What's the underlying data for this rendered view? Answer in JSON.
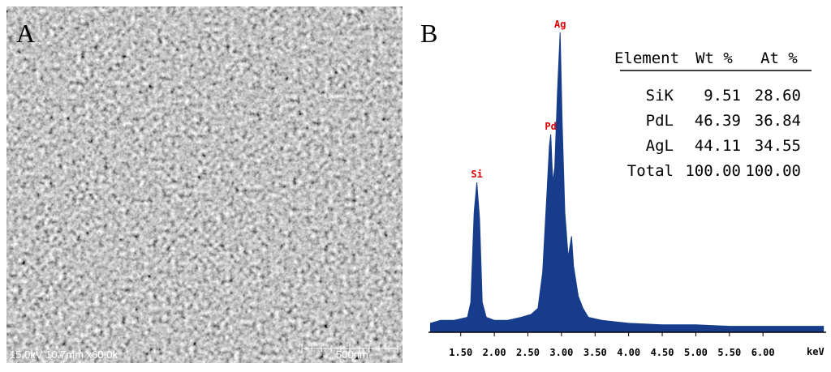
{
  "panel_a": {
    "label": "A",
    "info": "15.0kV 10.7mm x60.0k",
    "scale": "500nm"
  },
  "panel_b": {
    "label": "B",
    "x_unit": "keV",
    "xlim": [
      1.02,
      6.94
    ],
    "xticks": [
      {
        "value": 1.5,
        "label": "1.50"
      },
      {
        "value": 2.0,
        "label": "2.00"
      },
      {
        "value": 2.5,
        "label": "2.50"
      },
      {
        "value": 3.0,
        "label": "3.00"
      },
      {
        "value": 3.5,
        "label": "3.50"
      },
      {
        "value": 4.0,
        "label": "4.00"
      },
      {
        "value": 4.5,
        "label": "4.50"
      },
      {
        "value": 5.0,
        "label": "5.00"
      },
      {
        "value": 5.5,
        "label": "5.50"
      },
      {
        "value": 6.0,
        "label": "6.00"
      }
    ],
    "ylim": [
      0,
      100
    ],
    "color": "#173c8c",
    "spectrum": {
      "x": [
        1.05,
        1.2,
        1.4,
        1.6,
        1.65,
        1.7,
        1.74,
        1.78,
        1.82,
        1.88,
        2.0,
        2.2,
        2.4,
        2.55,
        2.65,
        2.72,
        2.78,
        2.82,
        2.84,
        2.87,
        2.9,
        2.94,
        2.98,
        3.01,
        3.05,
        3.1,
        3.15,
        3.18,
        3.25,
        3.32,
        3.4,
        3.6,
        4.0,
        4.5,
        5.0,
        5.5,
        6.0,
        6.5,
        6.9
      ],
      "values": [
        3,
        4,
        4,
        5,
        10,
        40,
        50,
        38,
        10,
        5,
        4,
        4,
        5,
        6,
        8,
        20,
        45,
        62,
        66,
        50,
        55,
        80,
        100,
        70,
        40,
        25,
        32,
        22,
        12,
        8,
        5,
        4,
        3,
        2.5,
        2.5,
        2,
        2,
        2,
        2
      ]
    },
    "peaks": [
      {
        "label": "Si",
        "x": 1.74,
        "value": 50
      },
      {
        "label": "Pd",
        "x": 2.84,
        "value": 66
      },
      {
        "label": "Ag",
        "x": 2.98,
        "value": 100
      }
    ],
    "table": {
      "header": [
        "Element",
        "Wt %",
        "At %"
      ],
      "rows": [
        [
          "SiK",
          "9.51",
          "28.60"
        ],
        [
          "PdL",
          "46.39",
          "36.84"
        ],
        [
          "AgL",
          "44.11",
          "34.55"
        ],
        [
          "Total",
          "100.00",
          "100.00"
        ]
      ]
    }
  }
}
